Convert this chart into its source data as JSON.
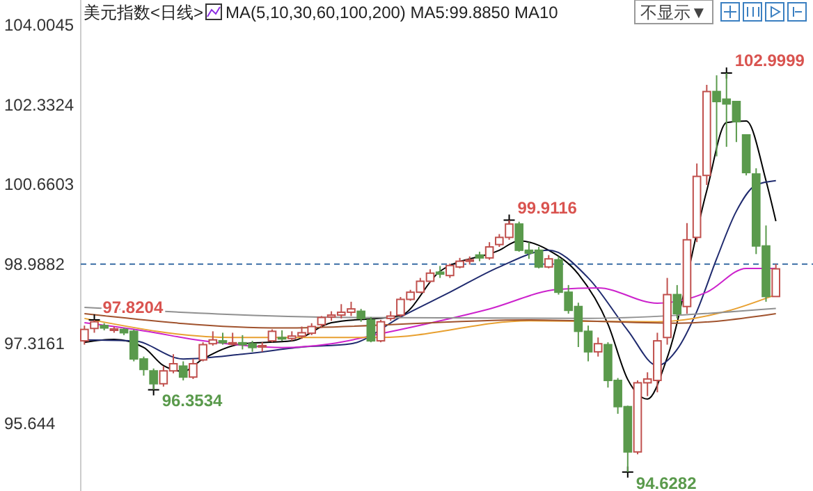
{
  "chart_data": {
    "type": "candlestick",
    "title": "美元指数<日线>",
    "subtitle": "MA(5,10,30,60,100,200) MA5:99.8850 MA10",
    "categories": [
      null,
      null,
      null,
      null,
      null,
      null,
      null,
      null,
      null,
      null,
      null,
      null,
      null,
      null,
      null,
      null,
      null,
      null,
      null,
      null,
      null,
      null,
      null,
      null,
      null,
      null,
      null,
      null,
      null,
      null,
      null,
      null,
      null,
      null,
      null,
      null,
      null,
      null,
      null,
      null,
      null,
      null,
      null,
      null,
      null,
      null,
      null,
      null,
      null,
      null,
      null,
      null,
      null,
      null,
      null,
      null,
      null,
      null,
      null,
      null,
      null,
      null,
      null,
      null,
      null,
      null,
      null,
      null,
      null,
      null,
      null
    ],
    "ohlc": [
      [
        97.38,
        97.7,
        97.3,
        97.62
      ],
      [
        97.64,
        97.8204,
        97.55,
        97.78
      ],
      [
        97.7,
        97.75,
        97.6,
        97.65
      ],
      [
        97.6,
        97.68,
        97.55,
        97.63
      ],
      [
        97.62,
        97.65,
        97.5,
        97.55
      ],
      [
        97.58,
        97.62,
        96.95,
        97.0
      ],
      [
        97.0,
        97.05,
        96.65,
        96.78
      ],
      [
        96.75,
        96.8,
        96.3534,
        96.48
      ],
      [
        96.48,
        96.85,
        96.42,
        96.75
      ],
      [
        96.75,
        97.1,
        96.7,
        96.9
      ],
      [
        96.85,
        96.95,
        96.55,
        96.62
      ],
      [
        96.62,
        97.0,
        96.58,
        96.9
      ],
      [
        96.98,
        97.35,
        96.95,
        97.3
      ],
      [
        97.32,
        97.58,
        97.28,
        97.4
      ],
      [
        97.38,
        97.55,
        97.3,
        97.34
      ],
      [
        97.32,
        97.55,
        97.28,
        97.34
      ],
      [
        97.34,
        97.5,
        97.2,
        97.3
      ],
      [
        97.32,
        97.38,
        97.15,
        97.24
      ],
      [
        97.25,
        97.35,
        97.15,
        97.28
      ],
      [
        97.38,
        97.62,
        97.35,
        97.58
      ],
      [
        97.45,
        97.6,
        97.38,
        97.42
      ],
      [
        97.43,
        97.58,
        97.38,
        97.48
      ],
      [
        97.48,
        97.68,
        97.42,
        97.55
      ],
      [
        97.54,
        97.75,
        97.5,
        97.68
      ],
      [
        97.72,
        97.9,
        97.65,
        97.87
      ],
      [
        97.88,
        98.0,
        97.8,
        97.92
      ],
      [
        97.92,
        98.15,
        97.85,
        97.98
      ],
      [
        97.98,
        98.2,
        97.9,
        98.05
      ],
      [
        98.0,
        98.05,
        97.78,
        97.85
      ],
      [
        97.82,
        97.88,
        97.35,
        97.38
      ],
      [
        97.38,
        97.82,
        97.35,
        97.78
      ],
      [
        97.85,
        98.0,
        97.8,
        97.9
      ],
      [
        97.92,
        98.3,
        97.88,
        98.25
      ],
      [
        98.25,
        98.45,
        98.22,
        98.4
      ],
      [
        98.4,
        98.7,
        98.38,
        98.63
      ],
      [
        98.63,
        98.88,
        98.6,
        98.8
      ],
      [
        98.82,
        98.95,
        98.7,
        98.78
      ],
      [
        98.75,
        99.0,
        98.7,
        98.96
      ],
      [
        98.93,
        99.12,
        98.9,
        99.05
      ],
      [
        99.05,
        99.15,
        98.98,
        99.08
      ],
      [
        99.18,
        99.25,
        99.05,
        99.12
      ],
      [
        99.12,
        99.45,
        99.08,
        99.35
      ],
      [
        99.4,
        99.62,
        99.35,
        99.55
      ],
      [
        99.55,
        99.9116,
        99.5,
        99.83
      ],
      [
        99.83,
        99.88,
        99.25,
        99.28
      ],
      [
        99.28,
        99.45,
        99.1,
        99.22
      ],
      [
        99.28,
        99.35,
        98.9,
        98.93
      ],
      [
        98.93,
        99.18,
        98.9,
        99.1
      ],
      [
        99.08,
        99.15,
        98.35,
        98.4
      ],
      [
        98.4,
        98.55,
        97.95,
        98.02
      ],
      [
        98.1,
        98.18,
        97.25,
        97.58
      ],
      [
        97.58,
        97.7,
        96.95,
        97.15
      ],
      [
        97.15,
        97.45,
        97.05,
        97.32
      ],
      [
        97.3,
        97.35,
        96.4,
        96.55
      ],
      [
        96.55,
        96.6,
        95.85,
        96.0
      ],
      [
        96.0,
        96.02,
        94.6282,
        95.05
      ],
      [
        95.05,
        96.55,
        95.0,
        96.5
      ],
      [
        96.5,
        96.72,
        96.22,
        96.58
      ],
      [
        96.55,
        97.55,
        96.3,
        97.38
      ],
      [
        97.45,
        98.7,
        97.3,
        98.35
      ],
      [
        98.35,
        98.55,
        97.85,
        97.95
      ],
      [
        98.1,
        99.85,
        97.95,
        99.5
      ],
      [
        99.55,
        101.1,
        99.45,
        100.83
      ],
      [
        100.85,
        102.75,
        100.65,
        102.61
      ],
      [
        102.61,
        102.95,
        101.25,
        102.4
      ],
      [
        102.45,
        102.9999,
        101.45,
        102.35
      ],
      [
        102.4,
        102.4,
        101.55,
        101.98
      ],
      [
        101.7,
        101.7,
        100.85,
        100.91
      ],
      [
        100.88,
        101.0,
        99.2,
        99.37
      ],
      [
        99.37,
        99.8,
        98.2,
        98.31
      ],
      [
        98.31,
        98.99,
        98.3,
        98.89
      ]
    ],
    "series": [
      {
        "type": "line",
        "color": "#000000",
        "values": [
          97.35,
          null,
          null,
          97.41,
          null,
          null,
          97.24,
          null,
          96.86,
          null,
          96.74,
          null,
          97.0,
          null,
          null,
          null,
          97.32,
          null,
          null,
          null,
          null,
          97.38,
          null,
          null,
          null,
          97.76,
          null,
          null,
          null,
          null,
          null,
          null,
          97.91,
          null,
          null,
          null,
          98.84,
          null,
          null,
          null,
          null,
          null,
          99.28,
          null,
          99.48,
          null,
          null,
          99.28,
          null,
          null,
          98.78,
          null,
          null,
          97.73,
          null,
          96.57,
          null,
          96.16,
          null,
          97.03,
          null,
          null,
          null,
          100.53,
          null,
          101.96,
          null,
          101.99,
          null,
          100.74,
          99.89
        ]
      },
      {
        "type": "line",
        "color": "#1f2a6e",
        "values": [
          97.4,
          null,
          null,
          null,
          null,
          97.38,
          null,
          null,
          null,
          null,
          97.0,
          null,
          null,
          null,
          null,
          null,
          97.1,
          null,
          null,
          null,
          null,
          null,
          97.25,
          null,
          null,
          null,
          null,
          97.32,
          null,
          null,
          null,
          null,
          97.88,
          null,
          null,
          null,
          null,
          98.4,
          null,
          null,
          null,
          null,
          98.93,
          null,
          null,
          null,
          null,
          99.28,
          null,
          null,
          null,
          98.7,
          null,
          null,
          null,
          97.6,
          null,
          null,
          96.86,
          null,
          97.2,
          null,
          98.0,
          null,
          99.1,
          null,
          100.1,
          null,
          100.65,
          null,
          100.74
        ]
      },
      {
        "type": "line",
        "color": "#cc22cc",
        "values": [
          97.76,
          null,
          null,
          null,
          null,
          null,
          97.59,
          null,
          null,
          null,
          null,
          null,
          97.38,
          null,
          null,
          null,
          null,
          null,
          null,
          null,
          97.24,
          null,
          null,
          null,
          null,
          97.32,
          null,
          null,
          null,
          null,
          97.53,
          null,
          null,
          null,
          null,
          null,
          null,
          null,
          null,
          null,
          null,
          98.05,
          null,
          null,
          null,
          null,
          null,
          null,
          98.46,
          null,
          null,
          null,
          98.49,
          null,
          null,
          null,
          null,
          null,
          98.17,
          null,
          null,
          null,
          null,
          98.4,
          null,
          null,
          null,
          98.9,
          null,
          null,
          98.9
        ]
      },
      {
        "type": "line",
        "color": "#e8a030",
        "values": [
          97.85,
          null,
          null,
          null,
          null,
          null,
          null,
          null,
          null,
          null,
          null,
          null,
          null,
          null,
          null,
          97.45,
          null,
          null,
          null,
          null,
          null,
          null,
          null,
          null,
          null,
          null,
          null,
          null,
          null,
          null,
          97.45,
          null,
          null,
          null,
          null,
          null,
          null,
          null,
          null,
          null,
          null,
          null,
          null,
          null,
          null,
          97.8,
          null,
          null,
          null,
          null,
          null,
          null,
          null,
          null,
          null,
          null,
          null,
          null,
          97.78,
          null,
          null,
          null,
          null,
          null,
          null,
          98.0,
          null,
          null,
          null,
          null,
          98.35
        ]
      },
      {
        "type": "line",
        "color": "#a0522d",
        "values": [
          97.95,
          null,
          null,
          null,
          null,
          null,
          null,
          null,
          null,
          null,
          null,
          null,
          null,
          null,
          null,
          null,
          null,
          null,
          null,
          null,
          97.65,
          null,
          null,
          null,
          null,
          null,
          null,
          null,
          null,
          null,
          null,
          null,
          null,
          null,
          null,
          null,
          null,
          null,
          null,
          null,
          null,
          null,
          null,
          null,
          null,
          97.82,
          null,
          null,
          null,
          null,
          null,
          null,
          null,
          null,
          null,
          null,
          null,
          null,
          null,
          null,
          97.75,
          null,
          null,
          null,
          null,
          null,
          null,
          null,
          null,
          null,
          97.95
        ]
      },
      {
        "type": "line",
        "color": "#909090",
        "values": [
          98.08,
          null,
          null,
          null,
          null,
          null,
          null,
          null,
          null,
          null,
          null,
          null,
          null,
          null,
          null,
          null,
          null,
          null,
          null,
          null,
          null,
          null,
          null,
          null,
          null,
          null,
          null,
          97.87,
          null,
          null,
          null,
          null,
          null,
          null,
          null,
          null,
          null,
          null,
          null,
          null,
          null,
          null,
          null,
          null,
          null,
          null,
          null,
          null,
          null,
          null,
          97.85,
          null,
          null,
          null,
          null,
          null,
          null,
          null,
          null,
          null,
          null,
          null,
          null,
          null,
          null,
          null,
          null,
          null,
          null,
          null,
          98.06
        ]
      }
    ],
    "ylim": [
      94.23,
      104.53
    ],
    "yticks": [
      104.0045,
      102.3324,
      100.6603,
      98.9882,
      97.3161,
      95.644
    ],
    "ref_lines": [
      {
        "axis": "y",
        "value": 98.9882,
        "line_style": "dashed",
        "color": "#3a6ea5"
      }
    ],
    "annotations": [
      "97.8204",
      "96.3534",
      "99.9116",
      "94.6282",
      "102.9999",
      "不显示▼"
    ],
    "tick_labels": "y",
    "grid": false
  }
}
